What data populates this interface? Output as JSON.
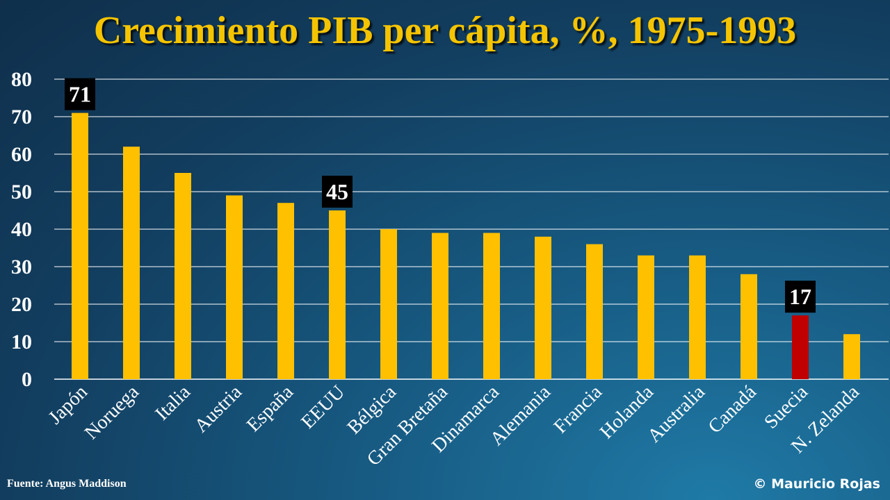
{
  "title": "Crecimiento PIB per cápita, %, 1975-1993",
  "source": "Fuente: Angus Maddison",
  "copyright": "© Mauricio Rojas",
  "colors": {
    "bar": "#FFC000",
    "highlight": "#C00000",
    "label_bg": "#000000",
    "title": "#F5C400",
    "grid": "#FFFFFF"
  },
  "chart_data": {
    "type": "bar",
    "categories": [
      "Japón",
      "Noruega",
      "Italia",
      "Austria",
      "España",
      "EEUU",
      "Bélgica",
      "Gran Bretaña",
      "Dinamarca",
      "Alemania",
      "Francia",
      "Holanda",
      "Australia",
      "Canadá",
      "Suecia",
      "N. Zelanda"
    ],
    "values": [
      71,
      62,
      55,
      49,
      47,
      45,
      40,
      39,
      39,
      38,
      36,
      33,
      33,
      28,
      17,
      12
    ],
    "highlighted_category": "Suecia",
    "data_labels": [
      {
        "category": "Japón",
        "value": 71
      },
      {
        "category": "EEUU",
        "value": 45
      },
      {
        "category": "Suecia",
        "value": 17
      }
    ],
    "ylim": [
      0,
      80
    ],
    "yticks": [
      0,
      10,
      20,
      30,
      40,
      50,
      60,
      70,
      80
    ],
    "grid": true,
    "xlabel": "",
    "ylabel": ""
  }
}
